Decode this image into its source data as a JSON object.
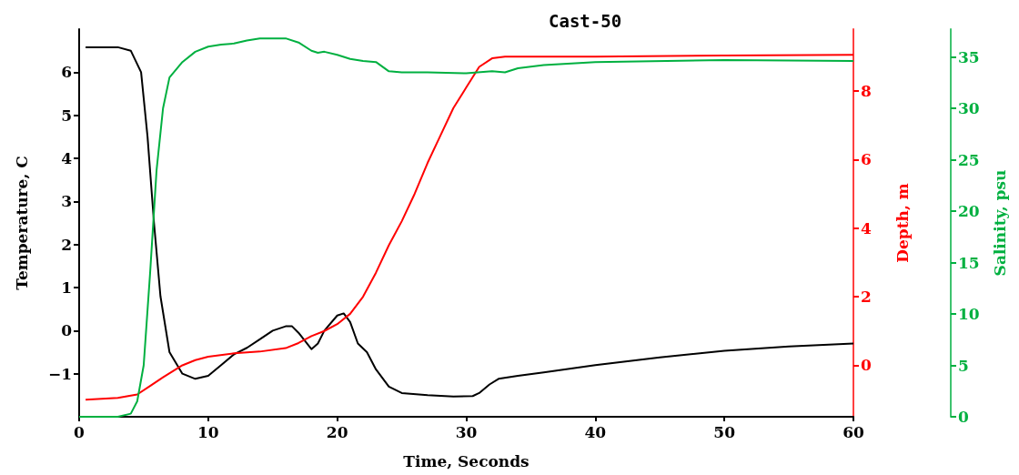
{
  "chart_data": {
    "type": "line",
    "title": "Cast-50",
    "xlabel": "Time, Seconds",
    "ylabel": "Temperature, C",
    "y2label": "Depth, m",
    "y3label": "Salinity, psu",
    "xlim": [
      0,
      60
    ],
    "xticks": [
      0,
      10,
      20,
      30,
      40,
      50,
      60
    ],
    "ylim": [
      -2,
      7
    ],
    "yticks": [
      -1,
      0,
      1,
      2,
      3,
      4,
      5,
      6
    ],
    "y2lim": [
      -1.5,
      9.8
    ],
    "y2ticks": [
      0,
      2,
      4,
      6,
      8
    ],
    "y3lim": [
      0,
      37.7
    ],
    "y3ticks": [
      0,
      5,
      10,
      15,
      20,
      25,
      30,
      35
    ],
    "grid": false,
    "marker": "none",
    "line_style": "solid",
    "series": [
      {
        "color": "#000000",
        "x": [
          0.5,
          3,
          4,
          4.8,
          5.3,
          5.8,
          6.3,
          7,
          8,
          9,
          10,
          11,
          12,
          13,
          14,
          15,
          16,
          16.5,
          17,
          18,
          18.5,
          19,
          20,
          20.5,
          21,
          21.6,
          22.3,
          23,
          24,
          25,
          27,
          29,
          30.5,
          31,
          31.8,
          32.5,
          34,
          36,
          40,
          45,
          50,
          55,
          60
        ],
        "values": [
          6.58,
          6.58,
          6.5,
          6.0,
          4.5,
          2.5,
          0.8,
          -0.5,
          -1.0,
          -1.12,
          -1.05,
          -0.8,
          -0.55,
          -0.4,
          -0.2,
          0.0,
          0.1,
          0.1,
          -0.05,
          -0.43,
          -0.3,
          0.0,
          0.35,
          0.4,
          0.2,
          -0.3,
          -0.5,
          -0.9,
          -1.3,
          -1.45,
          -1.5,
          -1.53,
          -1.52,
          -1.45,
          -1.25,
          -1.12,
          -1.05,
          -0.97,
          -0.8,
          -0.62,
          -0.47,
          -0.37,
          -0.3
        ]
      },
      {
        "color": "#ff0000",
        "axis": "y2",
        "x": [
          0.5,
          3,
          4.5,
          5.5,
          6.5,
          8,
          9,
          10,
          12,
          14,
          16,
          17,
          18,
          19,
          20,
          21,
          22,
          23,
          24,
          25,
          26,
          27,
          28,
          29,
          30,
          31,
          32,
          33,
          35,
          40,
          50,
          60
        ],
        "values": [
          -1.0,
          -0.95,
          -0.85,
          -0.6,
          -0.35,
          0.0,
          0.15,
          0.25,
          0.35,
          0.4,
          0.5,
          0.65,
          0.85,
          1.0,
          1.2,
          1.5,
          2.0,
          2.7,
          3.5,
          4.2,
          5.0,
          5.9,
          6.7,
          7.5,
          8.1,
          8.7,
          8.95,
          9.0,
          9.0,
          9.0,
          9.03,
          9.05
        ]
      },
      {
        "color": "#00b040",
        "axis": "y3",
        "x": [
          0,
          3,
          4,
          4.5,
          5,
          5.5,
          6,
          6.5,
          7,
          8,
          9,
          10,
          11,
          12,
          13,
          14,
          16,
          17,
          18,
          18.5,
          19,
          20,
          21,
          22,
          23,
          24,
          25,
          27,
          30,
          32,
          33,
          34,
          36,
          40,
          50,
          60
        ],
        "values": [
          0,
          0,
          0.3,
          1.5,
          5,
          14,
          24,
          30,
          33,
          34.5,
          35.5,
          36.0,
          36.2,
          36.3,
          36.6,
          36.8,
          36.8,
          36.4,
          35.6,
          35.4,
          35.5,
          35.2,
          34.8,
          34.6,
          34.5,
          33.6,
          33.5,
          33.5,
          33.4,
          33.6,
          33.5,
          33.9,
          34.2,
          34.5,
          34.7,
          34.6
        ]
      }
    ]
  }
}
